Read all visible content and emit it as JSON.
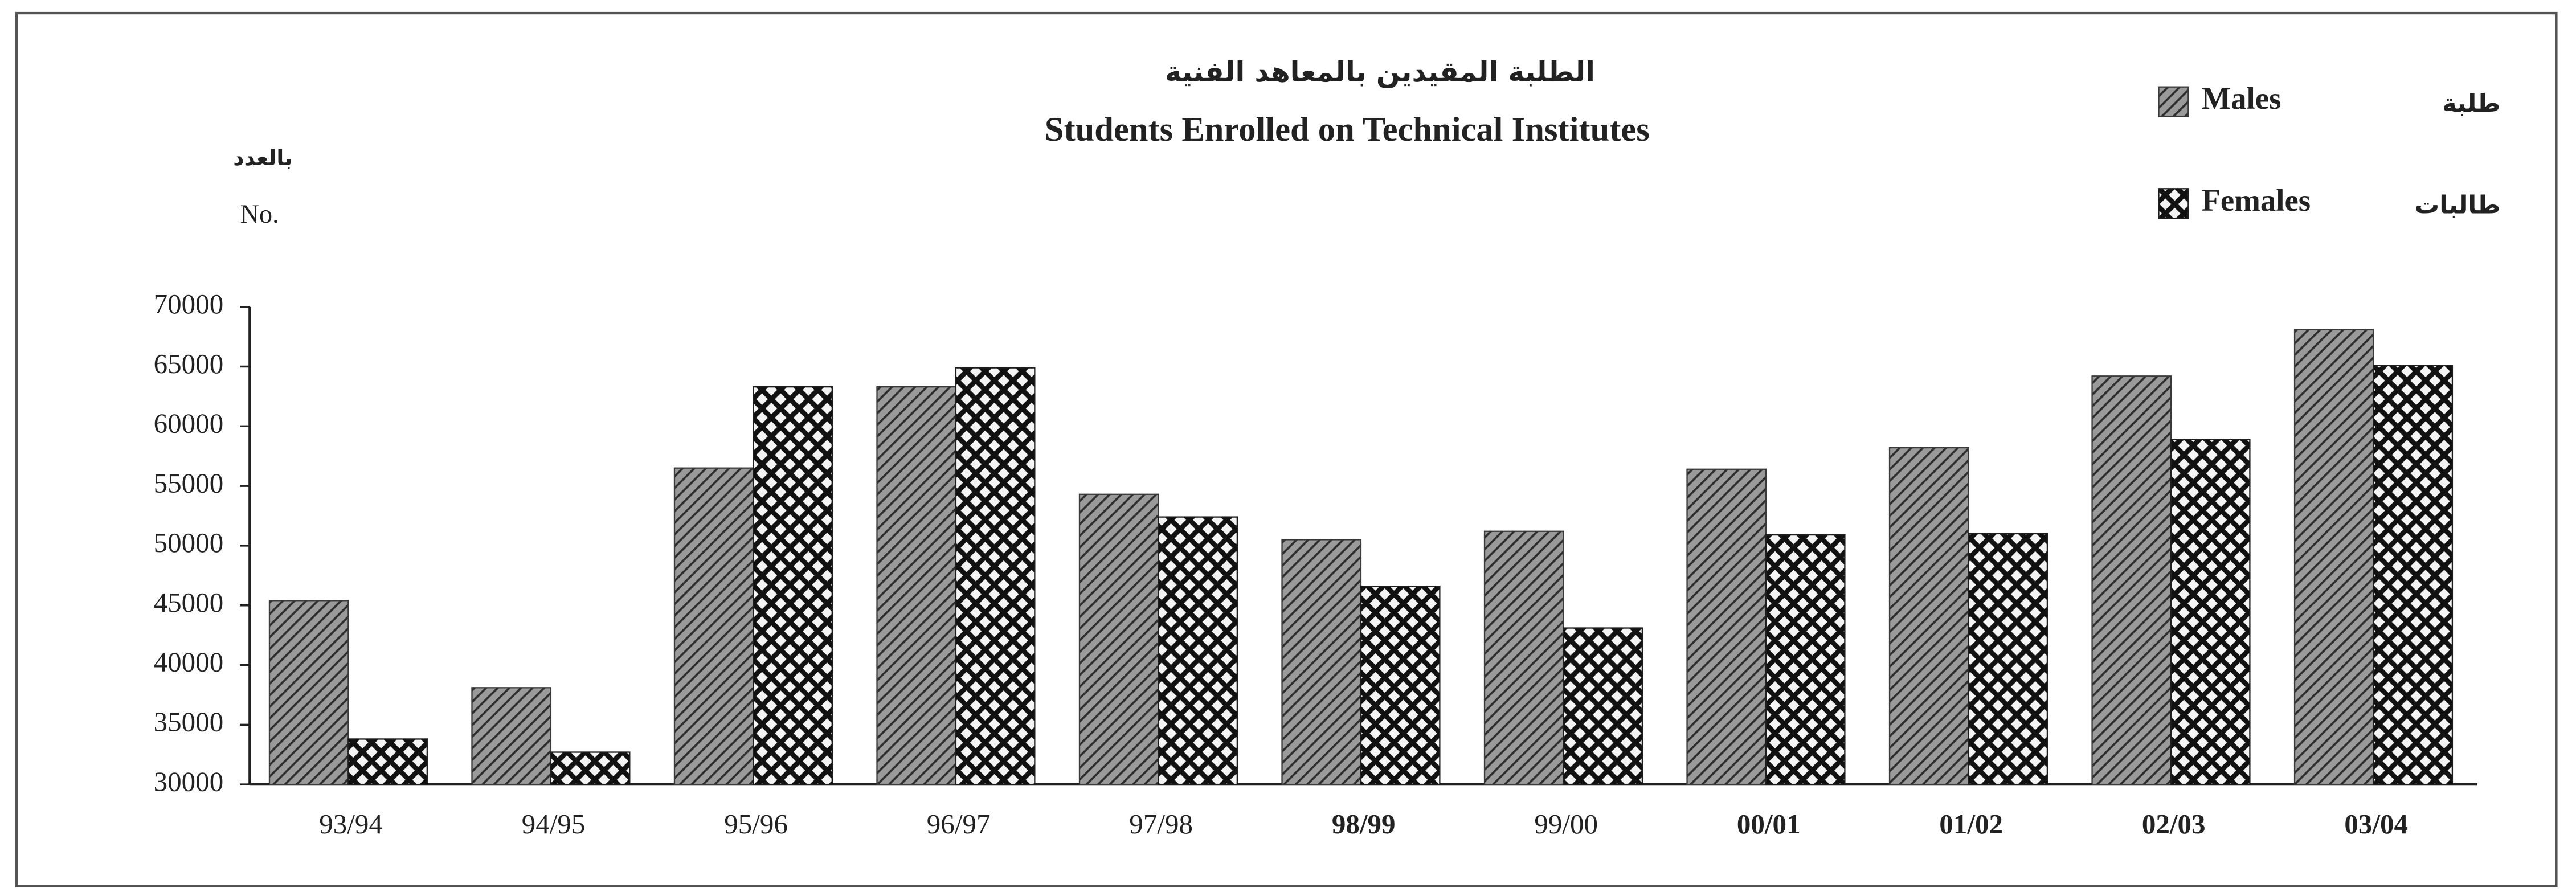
{
  "chart_data": {
    "type": "bar",
    "title_ar": "الطلبة المقيدين بالمعاهد الفنية",
    "title": "Students Enrolled on Technical Institutes",
    "y_label_ar": "بالعدد",
    "y_label": "No.",
    "categories": [
      "93/94",
      "94/95",
      "95/96",
      "96/97",
      "97/98",
      "98/99",
      "99/00",
      "00/01",
      "01/02",
      "02/03",
      "03/04"
    ],
    "series": [
      {
        "name": "Males",
        "name_ar": "طلبة",
        "color": "#3a3a3a",
        "pattern": "hatch",
        "values": [
          45400,
          38100,
          56500,
          63300,
          54300,
          50500,
          51200,
          56400,
          58200,
          64200,
          68100
        ]
      },
      {
        "name": "Females",
        "name_ar": "طالبات",
        "color": "#1e1e1e",
        "pattern": "cross",
        "values": [
          33800,
          32700,
          63300,
          64900,
          52400,
          46600,
          43100,
          50900,
          51000,
          58900,
          65100
        ]
      }
    ],
    "ylim": [
      30000,
      70000
    ],
    "yticks": [
      30000,
      35000,
      40000,
      45000,
      50000,
      55000,
      60000,
      65000,
      70000
    ],
    "legend": "top-right"
  }
}
